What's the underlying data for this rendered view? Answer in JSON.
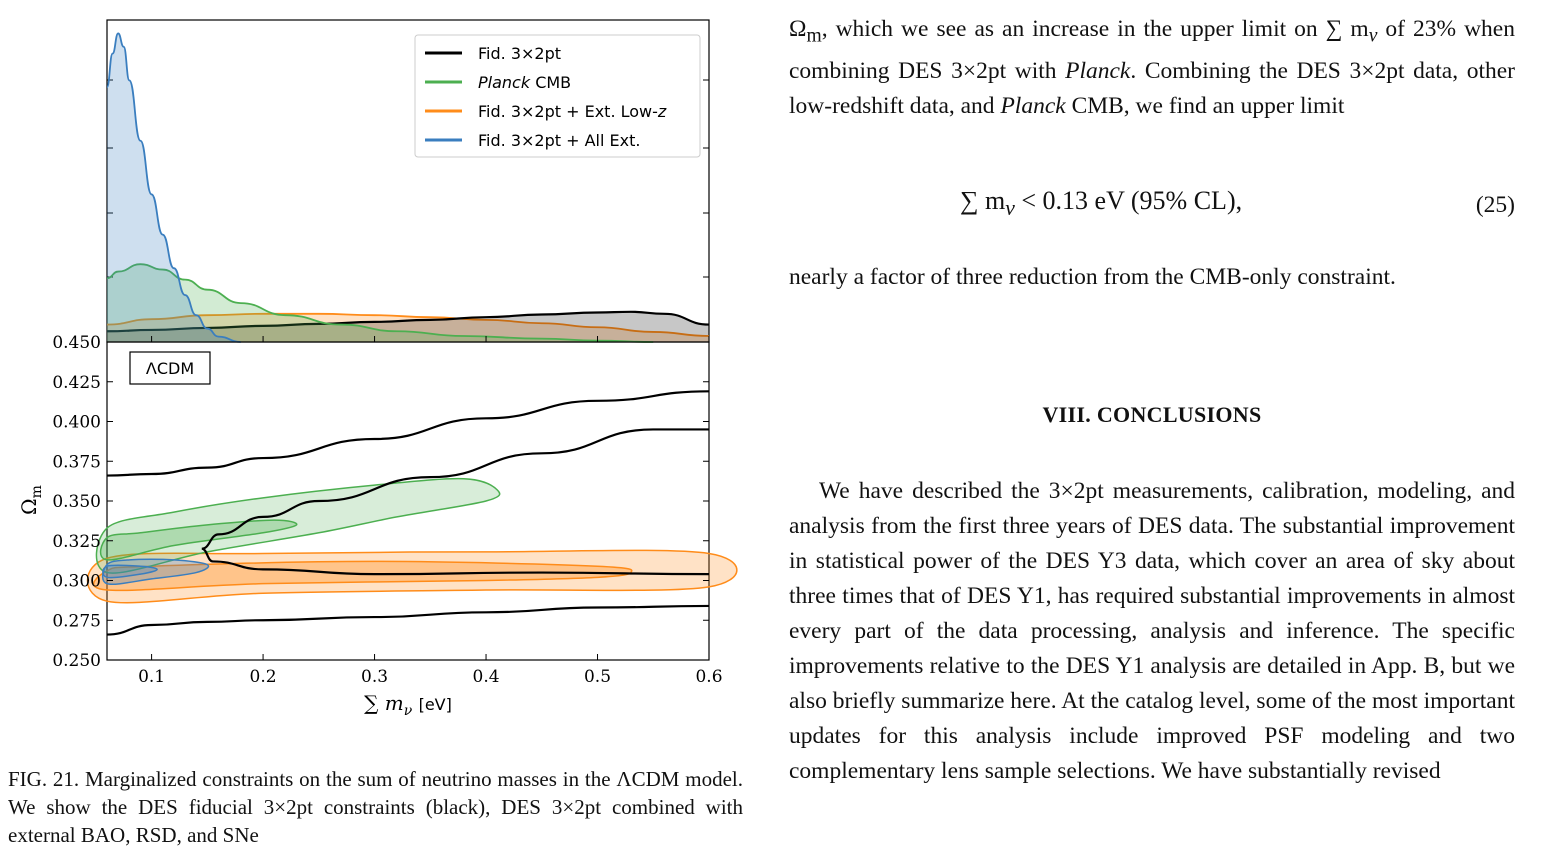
{
  "figure": {
    "chart_data": [
      {
        "type": "line",
        "panel": "top",
        "description_source": "1D marginalized posterior of sum of neutrino masses",
        "xlim": [
          0.06,
          0.6
        ],
        "series": [
          {
            "name": "Fid. 3×2pt",
            "color": "#000000",
            "x": [
              0.06,
              0.1,
              0.15,
              0.2,
              0.25,
              0.3,
              0.35,
              0.4,
              0.45,
              0.5,
              0.53,
              0.56,
              0.6
            ],
            "y": [
              0.16,
              0.18,
              0.21,
              0.24,
              0.27,
              0.3,
              0.33,
              0.37,
              0.41,
              0.44,
              0.45,
              0.42,
              0.26
            ]
          },
          {
            "name": "Planck CMB",
            "color": "#4caf50",
            "x": [
              0.06,
              0.07,
              0.09,
              0.11,
              0.13,
              0.15,
              0.18,
              0.22,
              0.27,
              0.32,
              0.38,
              0.45,
              0.5,
              0.55
            ],
            "y": [
              0.95,
              1.05,
              1.16,
              1.08,
              0.93,
              0.78,
              0.58,
              0.4,
              0.26,
              0.16,
              0.09,
              0.05,
              0.02,
              0.0
            ]
          },
          {
            "name": "Fid. 3×2pt + Ext. Low-z",
            "color": "#ff8c1a",
            "x": [
              0.06,
              0.1,
              0.15,
              0.2,
              0.25,
              0.3,
              0.35,
              0.4,
              0.45,
              0.5,
              0.55,
              0.6
            ],
            "y": [
              0.26,
              0.34,
              0.4,
              0.42,
              0.42,
              0.4,
              0.37,
              0.33,
              0.28,
              0.22,
              0.15,
              0.09
            ]
          },
          {
            "name": "Fid. 3×2pt + All Ext.",
            "color": "#3a7ebf",
            "x": [
              0.06,
              0.065,
              0.07,
              0.075,
              0.08,
              0.09,
              0.1,
              0.11,
              0.12,
              0.13,
              0.14,
              0.15,
              0.16,
              0.18
            ],
            "y": [
              3.8,
              4.3,
              4.6,
              4.4,
              3.9,
              3.0,
              2.2,
              1.6,
              1.1,
              0.7,
              0.4,
              0.2,
              0.08,
              0.0
            ]
          }
        ]
      },
      {
        "type": "line",
        "panel": "bottom",
        "xlabel": "∑ m_ν [eV]",
        "ylabel": "Ω_m",
        "xlim": [
          0.06,
          0.6
        ],
        "ylim": [
          0.25,
          0.45
        ],
        "xticks": [
          "0.1",
          "0.2",
          "0.3",
          "0.4",
          "0.5",
          "0.6"
        ],
        "yticks": [
          "0.250",
          "0.275",
          "0.300",
          "0.325",
          "0.350",
          "0.375",
          "0.400",
          "0.425",
          "0.450"
        ],
        "annotation": "ΛCDM",
        "series": [
          {
            "name": "Fid. 3×2pt",
            "color": "#000000",
            "level": "outer upper",
            "x": [
              0.06,
              0.1,
              0.15,
              0.2,
              0.3,
              0.4,
              0.5,
              0.6
            ],
            "y": [
              0.366,
              0.367,
              0.371,
              0.377,
              0.389,
              0.402,
              0.413,
              0.419
            ]
          },
          {
            "name": "Fid. 3×2pt",
            "color": "#000000",
            "level": "outer lower",
            "x": [
              0.06,
              0.1,
              0.15,
              0.2,
              0.3,
              0.4,
              0.5,
              0.6
            ],
            "y": [
              0.266,
              0.272,
              0.274,
              0.275,
              0.277,
              0.28,
              0.283,
              0.284
            ]
          },
          {
            "name": "Planck CMB",
            "color": "#4caf50",
            "level": "68/95 contours",
            "x": [
              0.06,
              0.1,
              0.2,
              0.3,
              0.38,
              0.41
            ],
            "y": [
              0.3,
              0.315,
              0.34,
              0.353,
              0.364,
              0.358
            ]
          },
          {
            "name": "Fid. 3×2pt + Ext. Low-z",
            "color": "#ff8c1a",
            "level": "contours",
            "x": [
              0.06,
              0.2,
              0.4,
              0.6
            ],
            "y": [
              0.3,
              0.304,
              0.306,
              0.307
            ]
          },
          {
            "name": "Fid. 3×2pt + All Ext.",
            "color": "#3a7ebf",
            "level": "contours",
            "x": [
              0.06,
              0.1,
              0.14,
              0.18
            ],
            "y": [
              0.304,
              0.305,
              0.307,
              0.308
            ]
          }
        ]
      }
    ],
    "legend": [
      {
        "label_pre": "Fid. 3×2pt",
        "label_italic": "",
        "label_post": "",
        "color": "#000000"
      },
      {
        "label_pre": "",
        "label_italic": "Planck",
        "label_post": " CMB",
        "color": "#4caf50"
      },
      {
        "label_pre": "Fid. 3×2pt + Ext. Low-",
        "label_italic": "z",
        "label_post": "",
        "color": "#ff8c1a"
      },
      {
        "label_pre": "Fid. 3×2pt + All Ext.",
        "label_italic": "",
        "label_post": "",
        "color": "#3a7ebf"
      }
    ]
  },
  "caption": "FIG. 21. Marginalized constraints on the sum of neutrino masses in the ΛCDM model. We show the DES fiducial 3×2pt constraints (black), DES 3×2pt combined with external BAO, RSD, and SNe",
  "right_column": {
    "para1_a": "Ω",
    "para1_sub": "m",
    "para1_b": ", which we see as an increase in the upper limit on ∑ m",
    "para1_nu": "ν",
    "para1_c": " of 23% when combining DES 3×2pt with ",
    "para1_planck": "Planck",
    "para1_d": ". Combining the DES 3×2pt data, other low-redshift data, and ",
    "para1_planck2": "Planck",
    "para1_e": " CMB, we find an upper limit",
    "equation": "∑ m",
    "equation_nu": "ν",
    "equation_rest": " < 0.13 eV (95% CL),",
    "equation_number": "(25)",
    "para2": "nearly a factor of three reduction from the CMB-only constraint.",
    "heading": "VIII.   CONCLUSIONS",
    "para3": "We have described the 3×2pt measurements, calibration, modeling, and analysis from the first three years of DES data. The substantial improvement in statistical power of the DES Y3 data, which cover an area of sky about three times that of DES Y1, has required substantial improvements in almost every part of the data processing, analysis and inference. The specific improvements relative to the DES Y1 analysis are detailed in App. B, but we also briefly summarize here. At the catalog level, some of the most important updates for this analysis include improved PSF modeling and two complementary lens sample selections. We have substantially revised"
  }
}
